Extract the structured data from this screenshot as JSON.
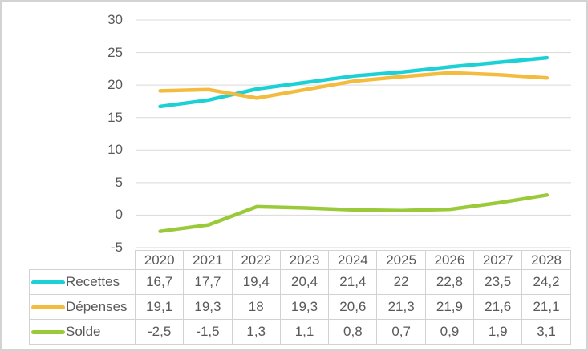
{
  "figure": {
    "background": "#ffffff",
    "border_color": "#d3d3d3",
    "text_color": "#595959"
  },
  "chart_data": {
    "type": "line",
    "title": "",
    "xlabel": "",
    "ylabel": "",
    "categories": [
      "2020",
      "2021",
      "2022",
      "2023",
      "2024",
      "2025",
      "2026",
      "2027",
      "2028"
    ],
    "series": [
      {
        "name": "Recettes",
        "color": "#1cd1d6",
        "values": [
          16.7,
          17.7,
          19.4,
          20.4,
          21.4,
          22,
          22.8,
          23.5,
          24.2
        ]
      },
      {
        "name": "Dépenses",
        "color": "#f3bc3f",
        "values": [
          19.1,
          19.3,
          18,
          19.3,
          20.6,
          21.3,
          21.9,
          21.6,
          21.1
        ]
      },
      {
        "name": "Solde",
        "color": "#9aca3a",
        "values": [
          -2.5,
          -1.5,
          1.3,
          1.1,
          0.8,
          0.7,
          0.9,
          1.9,
          3.1
        ]
      }
    ],
    "ylim": [
      -5,
      30
    ],
    "yticks": [
      30,
      25,
      20,
      15,
      10,
      5,
      0,
      -5
    ],
    "grid": true,
    "gridline_color": "#d9d9d9",
    "legend_position": "data-table-row-headers"
  },
  "table": {
    "column_headers": [
      "2020",
      "2021",
      "2022",
      "2023",
      "2024",
      "2025",
      "2026",
      "2027",
      "2028"
    ],
    "row_labels": [
      "Recettes",
      "Dépenses",
      "Solde"
    ],
    "rows": [
      [
        "16,7",
        "17,7",
        "19,4",
        "20,4",
        "21,4",
        "22",
        "22,8",
        "23,5",
        "24,2"
      ],
      [
        "19,1",
        "19,3",
        "18",
        "19,3",
        "20,6",
        "21,3",
        "21,9",
        "21,6",
        "21,1"
      ],
      [
        "-2,5",
        "-1,5",
        "1,3",
        "1,1",
        "0,8",
        "0,7",
        "0,9",
        "1,9",
        "3,1"
      ]
    ],
    "border_color": "#d2d2d2"
  }
}
